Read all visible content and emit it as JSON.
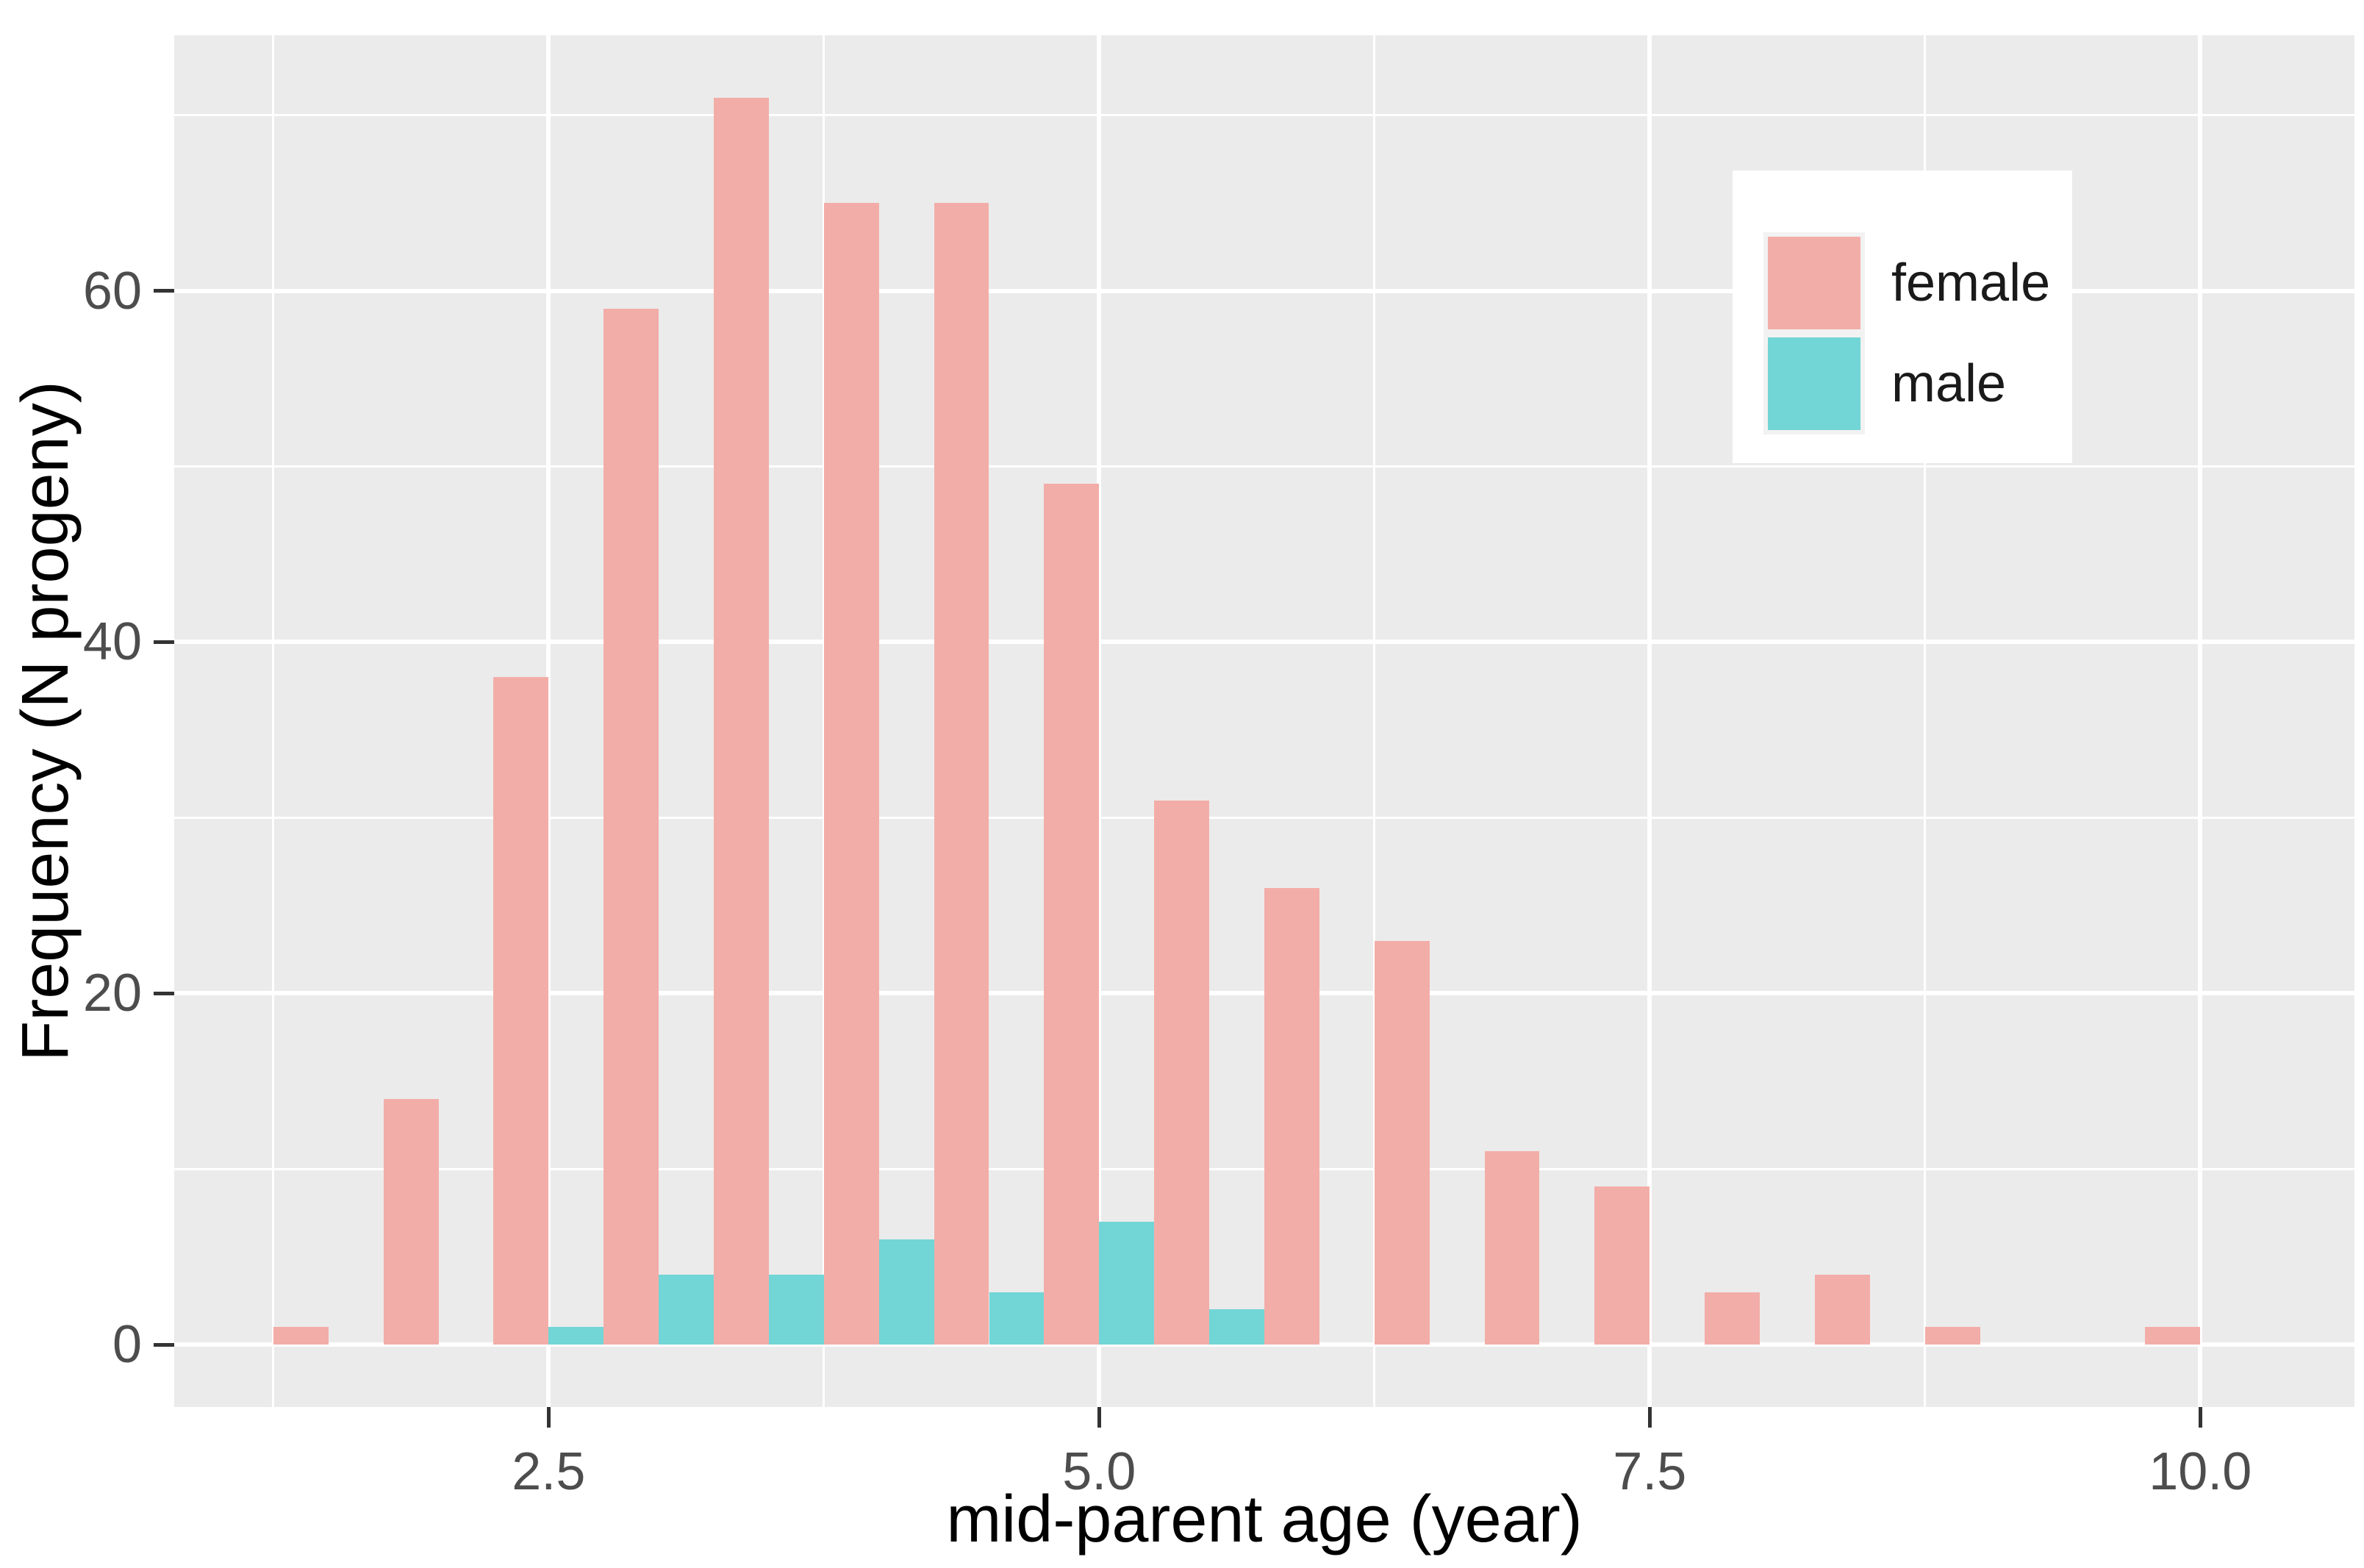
{
  "chart_data": {
    "type": "bar",
    "subtype": "dodged-histogram",
    "title": "",
    "xlabel": "mid-parent age (year)",
    "ylabel": "Frequency (N progeny)",
    "xlim": [
      0.8,
      10.7
    ],
    "ylim": [
      -3.55,
      74.55
    ],
    "x_ticks": [
      2.5,
      5.0,
      7.5,
      10.0
    ],
    "x_tick_labels": [
      "2.5",
      "5.0",
      "7.5",
      "10.0"
    ],
    "x_minor_gridlines": [
      1.25,
      3.75,
      6.25,
      8.75
    ],
    "y_ticks": [
      0,
      20,
      40,
      60
    ],
    "y_tick_labels": [
      "0",
      "20",
      "40",
      "60"
    ],
    "y_minor_gridlines": [
      10,
      30,
      50,
      70
    ],
    "grid": "on",
    "bin_width": 0.5,
    "bar_width": 0.25,
    "categories": [
      1.5,
      2.0,
      2.5,
      3.0,
      3.5,
      4.0,
      4.5,
      5.0,
      5.5,
      6.0,
      6.5,
      7.0,
      7.5,
      8.0,
      8.5,
      9.0,
      9.5,
      10.0
    ],
    "series": [
      {
        "name": "female",
        "color": "#F3ADA8",
        "values": [
          1,
          14,
          38,
          59,
          71,
          65,
          65,
          49,
          31,
          26,
          23,
          11,
          9,
          3,
          4,
          1,
          0,
          1
        ]
      },
      {
        "name": "male",
        "color": "#72D5D6",
        "values": [
          0,
          0,
          1,
          4,
          4,
          6,
          3,
          7,
          2,
          0,
          0,
          0,
          0,
          0,
          0,
          0,
          0,
          0
        ]
      }
    ],
    "legend": {
      "position": "inside-top-right",
      "items": [
        "female",
        "male"
      ]
    },
    "colors": {
      "panel_bg": "#EBEBEB",
      "grid": "#FFFFFF",
      "tick_mark": "#333333",
      "tick_label": "#4D4D4D",
      "axis_title": "#000000",
      "legend_bg": "#FFFFFF"
    }
  }
}
